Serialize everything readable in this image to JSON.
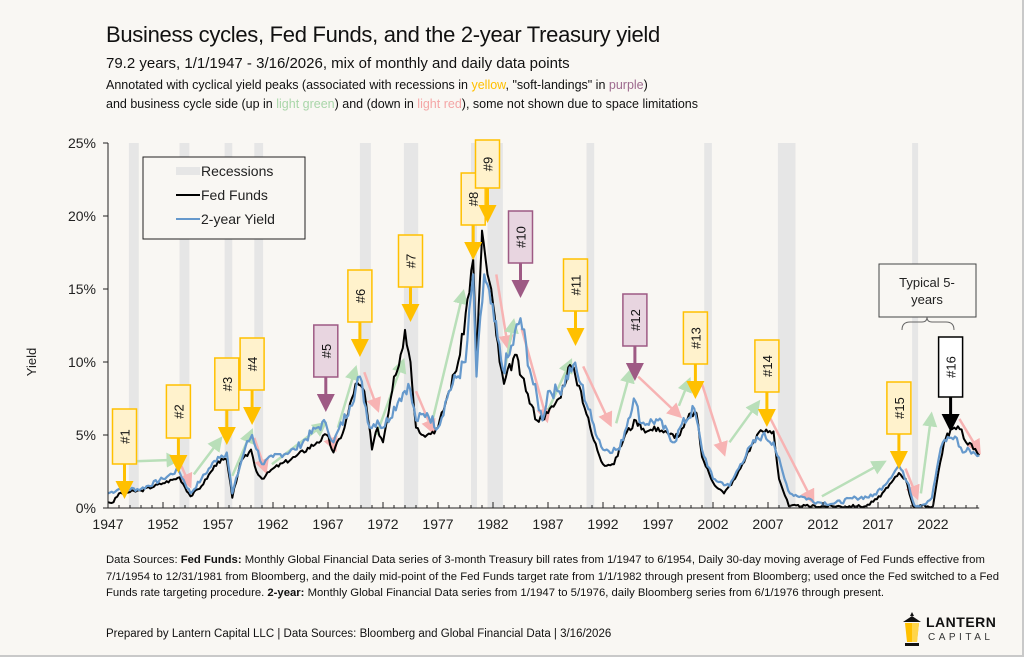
{
  "header": {
    "title": "Business cycles, Fed Funds, and the 2-year Treasury yield",
    "subtitle": "79.2 years, 1/1/1947 - 3/16/2026, mix of monthly and daily data points",
    "annot_line1": {
      "pre": "Annotated with cyclical yield peaks (associated with recessions in ",
      "yellow": "yellow",
      "mid": ", \"soft-landings\" in ",
      "purple": "purple",
      "post": ")"
    },
    "annot_line2": {
      "pre": "and business cycle side (up in ",
      "green": "light green",
      "mid": ") and (down in ",
      "red": "light red",
      "post": "), some not shown due to space limitations"
    }
  },
  "colors": {
    "background": "#f9f7f3",
    "fed_funds": "#000000",
    "two_year": "#6699cc",
    "recession": "#e6e6e6",
    "yellow_box_fill": "#fff2cc",
    "yellow": "#ffc000",
    "purple_box_fill": "#e8d5e0",
    "purple": "#9e5a84",
    "up_arrow": "#b9dfb9",
    "down_arrow": "#f7b3b3"
  },
  "chart_data": {
    "type": "line",
    "title": "Business cycles, Fed Funds, and the 2-year Treasury yield",
    "xlabel": "",
    "ylabel": "Yield",
    "xlim": [
      1947,
      2026.2
    ],
    "ylim": [
      0,
      25
    ],
    "x_ticks": [
      "1947",
      "1952",
      "1957",
      "1962",
      "1967",
      "1972",
      "1977",
      "1982",
      "1987",
      "1992",
      "1997",
      "2002",
      "2007",
      "2012",
      "2017",
      "2022"
    ],
    "y_ticks": [
      "0%",
      "5%",
      "10%",
      "15%",
      "20%",
      "25%"
    ],
    "grid": false,
    "legend": {
      "placement": "top-left",
      "entries": [
        "Recessions",
        "Fed Funds",
        "2-year Yield"
      ]
    },
    "recessions": [
      [
        1948.9,
        1949.8
      ],
      [
        1953.5,
        1954.4
      ],
      [
        1957.6,
        1958.3
      ],
      [
        1960.3,
        1961.1
      ],
      [
        1969.9,
        1970.9
      ],
      [
        1973.9,
        1975.2
      ],
      [
        1980.0,
        1980.5
      ],
      [
        1981.5,
        1982.9
      ],
      [
        1990.5,
        1991.2
      ],
      [
        2001.2,
        2001.9
      ],
      [
        2007.9,
        2009.5
      ],
      [
        2020.1,
        2020.4
      ]
    ],
    "series": [
      {
        "name": "Fed Funds",
        "x": [
          1947,
          1947.5,
          1948,
          1950,
          1952,
          1953.5,
          1954.5,
          1955.5,
          1957,
          1957.8,
          1958.3,
          1959,
          1960,
          1960.5,
          1961,
          1962,
          1964,
          1966,
          1966.9,
          1967.5,
          1968.5,
          1969.5,
          1970.3,
          1971,
          1971.5,
          1972,
          1973,
          1973.6,
          1974,
          1974.5,
          1975,
          1976,
          1977,
          1978,
          1979,
          1980.2,
          1980.5,
          1980.9,
          1981,
          1981.5,
          1982,
          1982.6,
          1983,
          1984,
          1984.6,
          1985,
          1986,
          1987,
          1988,
          1989,
          1989.5,
          1990,
          1991,
          1992,
          1993,
          1994,
          1995,
          1996,
          1997,
          1998,
          1999,
          2000,
          2000.5,
          2001,
          2002,
          2003,
          2004,
          2005,
          2006,
          2006.5,
          2007.5,
          2008,
          2008.9,
          2015.9,
          2016.9,
          2017.9,
          2018.9,
          2019.5,
          2020.2,
          2022,
          2022.5,
          2023,
          2023.6,
          2024.6,
          2025,
          2025.5,
          2026.2
        ],
        "values": [
          0.4,
          0.4,
          1.0,
          1.2,
          1.7,
          2.1,
          0.8,
          1.5,
          3.2,
          3.3,
          0.7,
          3.0,
          4.0,
          2.5,
          2.0,
          2.7,
          3.5,
          4.5,
          5.0,
          3.8,
          5.5,
          8.5,
          8.0,
          4.0,
          5.5,
          4.5,
          9.0,
          10.5,
          12.2,
          10.0,
          5.5,
          5.0,
          5.5,
          8.0,
          10.5,
          17.0,
          10.0,
          17.0,
          19.0,
          16.0,
          14.0,
          10.0,
          8.5,
          10.5,
          9.0,
          8.0,
          6.0,
          6.5,
          7.5,
          9.8,
          9.0,
          8.0,
          5.0,
          3.0,
          3.0,
          5.0,
          6.0,
          5.25,
          5.5,
          5.0,
          5.0,
          6.5,
          6.5,
          3.5,
          1.75,
          1.0,
          2.0,
          3.5,
          5.0,
          5.25,
          5.25,
          2.0,
          0.12,
          0.12,
          0.6,
          1.4,
          2.4,
          2.0,
          0.12,
          0.12,
          2.5,
          4.5,
          5.38,
          5.38,
          4.5,
          4.38,
          3.6
        ]
      },
      {
        "name": "2-year Yield",
        "x": [
          1947,
          1948,
          1950,
          1952,
          1953.4,
          1954.5,
          1955.5,
          1957,
          1957.8,
          1958.3,
          1959.5,
          1960.1,
          1961,
          1962,
          1964,
          1966,
          1966.8,
          1967.5,
          1969,
          1969.9,
          1970.8,
          1971.5,
          1972,
          1973.5,
          1974.3,
          1975,
          1976,
          1977,
          1978,
          1979.5,
          1980.2,
          1980.5,
          1981.2,
          1981.8,
          1982.9,
          1983.5,
          1984.5,
          1985.5,
          1986.5,
          1987,
          1988,
          1989.3,
          1990,
          1991,
          1992,
          1993.5,
          1994.8,
          1995.5,
          1997,
          1998.5,
          1999,
          2000.3,
          2001,
          2002,
          2003.5,
          2004.5,
          2005.5,
          2006.5,
          2007.5,
          2008.5,
          2009,
          2010,
          2011.5,
          2013,
          2015,
          2016.5,
          2017.5,
          2018.9,
          2019.8,
          2020.3,
          2021,
          2021.9,
          2022.5,
          2022.9,
          2023.5,
          2024,
          2024.7,
          2025.3,
          2026.2
        ],
        "values": [
          1.0,
          1.3,
          1.3,
          2.0,
          2.6,
          1.0,
          2.0,
          3.5,
          3.8,
          1.0,
          4.2,
          5.0,
          3.0,
          3.5,
          4.0,
          5.5,
          5.8,
          4.5,
          7.0,
          9.0,
          5.5,
          6.0,
          5.5,
          7.5,
          8.5,
          6.0,
          6.5,
          5.5,
          8.0,
          10.0,
          16.0,
          9.0,
          16.0,
          14.0,
          9.5,
          10.5,
          13.0,
          9.0,
          6.0,
          8.0,
          8.0,
          9.8,
          8.5,
          6.0,
          4.0,
          4.0,
          7.5,
          5.8,
          6.0,
          4.5,
          5.5,
          6.8,
          4.0,
          2.0,
          1.5,
          3.0,
          4.3,
          5.0,
          4.5,
          2.0,
          1.0,
          0.8,
          0.4,
          0.3,
          0.7,
          0.8,
          1.5,
          2.9,
          1.6,
          0.2,
          0.2,
          0.7,
          3.3,
          4.5,
          4.8,
          4.9,
          3.8,
          4.0,
          3.6
        ]
      }
    ],
    "peak_callouts": [
      {
        "label": "#1",
        "type": "recession",
        "year": 1948.5
      },
      {
        "label": "#2",
        "type": "recession",
        "year": 1953.4
      },
      {
        "label": "#3",
        "type": "recession",
        "year": 1957.8
      },
      {
        "label": "#4",
        "type": "recession",
        "year": 1960.1
      },
      {
        "label": "#5",
        "type": "soft-landing",
        "year": 1966.8
      },
      {
        "label": "#6",
        "type": "recession",
        "year": 1969.9
      },
      {
        "label": "#7",
        "type": "recession",
        "year": 1974.5
      },
      {
        "label": "#8",
        "type": "recession",
        "year": 1980.2
      },
      {
        "label": "#9",
        "type": "recession",
        "year": 1981.5
      },
      {
        "label": "#10",
        "type": "soft-landing",
        "year": 1984.5
      },
      {
        "label": "#11",
        "type": "recession",
        "year": 1989.5
      },
      {
        "label": "#12",
        "type": "soft-landing",
        "year": 1994.9
      },
      {
        "label": "#13",
        "type": "recession",
        "year": 2000.4
      },
      {
        "label": "#14",
        "type": "recession",
        "year": 2006.9
      },
      {
        "label": "#15",
        "type": "recession",
        "year": 2018.9
      },
      {
        "label": "#16",
        "type": "current",
        "year": 2023.6
      }
    ],
    "bracket_annotation": "Typical 5-years"
  },
  "notes": {
    "prefix": "Data Sources: ",
    "ff_label": "Fed Funds:",
    "ff_text": " Monthly Global Financial Data series of 3-month Treasury bill rates from 1/1947 to 6/1954, Daily 30-day moving average of Fed Funds effective from 7/1/1954 to 12/31/1981 from Bloomberg, and the daily mid-point of the Fed Funds target rate from 1/1/1982 through present from Bloomberg; used once the Fed switched to a Fed Funds rate targeting procedure. ",
    "ty_label": "2-year:",
    "ty_text": " Monthly Global Financial Data series from 1/1947 to 5/1976, daily Bloomberg series from 6/1/1976 through present."
  },
  "footer": "Prepared by Lantern Capital LLC | Data Sources: Bloomberg and Global Financial Data | 3/16/2026",
  "logo": {
    "line1": "LANTERN",
    "line2": "CAPITAL"
  }
}
